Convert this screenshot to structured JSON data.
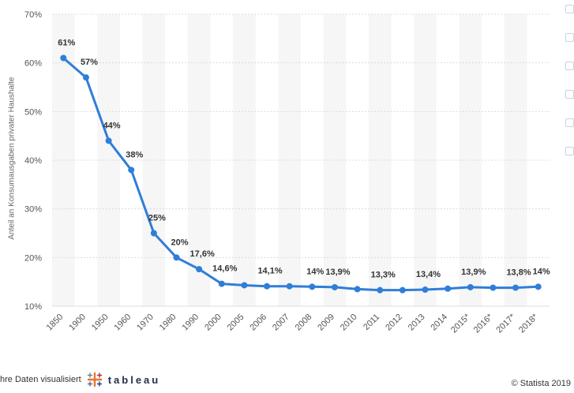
{
  "chart_data": {
    "type": "line",
    "categories": [
      "1850",
      "1900",
      "1950",
      "1960",
      "1970",
      "1980",
      "1990",
      "2000",
      "2005",
      "2006",
      "2007",
      "2008",
      "2009",
      "2010",
      "2011",
      "2012",
      "2013",
      "2014",
      "2015*",
      "2016*",
      "2017*",
      "2018*"
    ],
    "values": [
      61,
      57,
      44,
      38,
      25,
      20,
      17.6,
      14.6,
      14.3,
      14.1,
      14.1,
      14,
      13.9,
      13.5,
      13.3,
      13.3,
      13.4,
      13.6,
      13.9,
      13.8,
      13.8,
      14
    ],
    "data_labels": [
      "61%",
      "57%",
      "44%",
      "38%",
      "25%",
      "20%",
      "17,6%",
      "14,6%",
      "",
      "14,1%",
      "",
      "14%",
      "13,9%",
      "",
      "13,3%",
      "",
      "13,4%",
      "",
      "13,9%",
      "",
      "13,8%",
      "14%"
    ],
    "y_ticks": [
      "10%",
      "20%",
      "30%",
      "40%",
      "50%",
      "60%",
      "70%"
    ],
    "ylim": [
      10,
      70
    ],
    "ylabel": "Anteil an Konsumausgaben privater Haushalte",
    "grid": true,
    "color": "#2f7ed8"
  },
  "footer": {
    "left_text": "hre Daten visualisiert",
    "brand": "tableau",
    "right_text": "© Statista 2019"
  },
  "side_icons": [
    "bookmark-icon",
    "notification-icon",
    "settings-icon",
    "share-icon",
    "quote-icon",
    "print-icon"
  ]
}
